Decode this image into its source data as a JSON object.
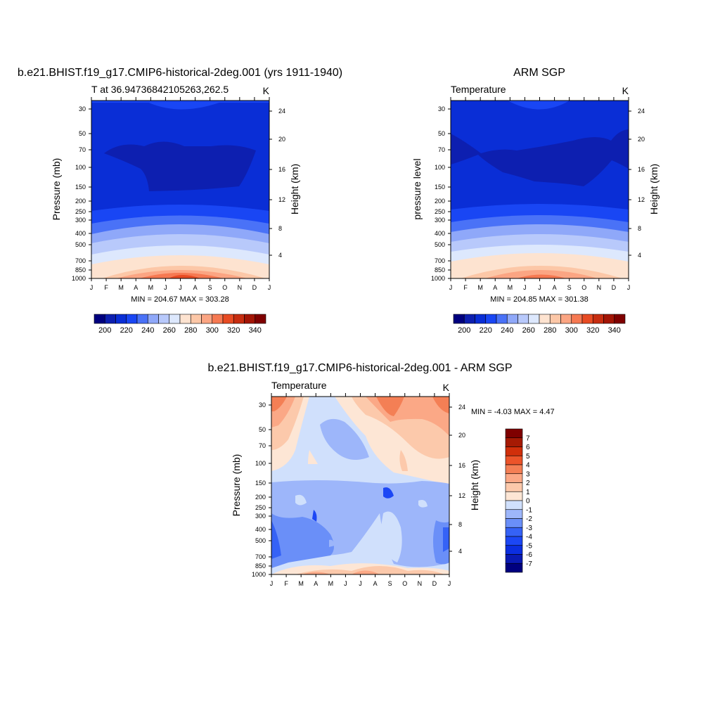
{
  "colors": {
    "abs_bands": [
      "#00007f",
      "#0d1fb0",
      "#0a2ed6",
      "#1946f4",
      "#4a72f7",
      "#8fa8f9",
      "#b8c9fb",
      "#dde8fd",
      "#fde3d0",
      "#fcc7a7",
      "#fba583",
      "#f67952",
      "#e84b23",
      "#c72d10",
      "#a31505",
      "#7f0000"
    ],
    "diff_bands": [
      "#00007f",
      "#0a1ab3",
      "#0b2ee0",
      "#1c47f5",
      "#3562f6",
      "#6a8ff8",
      "#9db6fa",
      "#d0e0fc",
      "#fde6d5",
      "#fcc9ab",
      "#fba886",
      "#f47f55",
      "#ec542a",
      "#d12f0b",
      "#a61a04",
      "#7f0000"
    ]
  },
  "chart_data": [
    {
      "type": "heatmap",
      "title": "b.e21.BHIST.f19_g17.CMIP6-historical-2deg.001 (yrs 1911-1940)",
      "subtitle_left": "T at 36.94736842105263,262.5",
      "subtitle_right": "K",
      "ylabel": "Pressure (mb)",
      "ylabel_right": "Height (km)",
      "x_ticks": [
        "J",
        "F",
        "M",
        "A",
        "M",
        "J",
        "J",
        "A",
        "S",
        "O",
        "N",
        "D",
        "J"
      ],
      "y_ticks": [
        30,
        50,
        70,
        100,
        150,
        200,
        250,
        300,
        400,
        500,
        700,
        850,
        1000
      ],
      "y_right_ticks": [
        24,
        20,
        16,
        12,
        8,
        4
      ],
      "y_scale": "log",
      "ylim": [
        1000,
        25
      ],
      "minmax": "MIN = 204.67 MAX = 303.28",
      "colorbar": {
        "orientation": "horizontal",
        "labels": [
          "200",
          "220",
          "240",
          "260",
          "280",
          "300",
          "320",
          "340"
        ]
      }
    },
    {
      "type": "heatmap",
      "title": "ARM SGP",
      "subtitle_left": "Temperature",
      "subtitle_right": "K",
      "ylabel": "pressure level",
      "ylabel_right": "Height (km)",
      "x_ticks": [
        "J",
        "F",
        "M",
        "A",
        "M",
        "J",
        "J",
        "A",
        "S",
        "O",
        "N",
        "D",
        "J"
      ],
      "y_ticks": [
        30,
        50,
        70,
        100,
        150,
        200,
        250,
        300,
        400,
        500,
        700,
        850,
        1000
      ],
      "y_right_ticks": [
        24,
        20,
        16,
        12,
        8,
        4
      ],
      "y_scale": "log",
      "ylim": [
        1000,
        25
      ],
      "minmax": "MIN = 204.85 MAX = 301.38",
      "colorbar": {
        "orientation": "horizontal",
        "labels": [
          "200",
          "220",
          "240",
          "260",
          "280",
          "300",
          "320",
          "340"
        ]
      }
    },
    {
      "type": "heatmap",
      "title": "b.e21.BHIST.f19_g17.CMIP6-historical-2deg.001 - ARM SGP",
      "subtitle_left": "Temperature",
      "subtitle_right": "K",
      "ylabel": "Pressure (mb)",
      "ylabel_right": "Height (km)",
      "x_ticks": [
        "J",
        "F",
        "M",
        "A",
        "M",
        "J",
        "J",
        "A",
        "S",
        "O",
        "N",
        "D",
        "J"
      ],
      "y_ticks": [
        30,
        50,
        70,
        100,
        150,
        200,
        250,
        300,
        400,
        500,
        700,
        850,
        1000
      ],
      "y_right_ticks": [
        24,
        20,
        16,
        12,
        8,
        4
      ],
      "y_scale": "log",
      "ylim": [
        1000,
        25
      ],
      "minmax": "MIN =  -4.03 MAX =   4.47",
      "colorbar": {
        "orientation": "vertical",
        "labels": [
          "7",
          "6",
          "5",
          "4",
          "3",
          "2",
          "1",
          "0",
          "-1",
          "-2",
          "-3",
          "-4",
          "-5",
          "-6",
          "-7"
        ]
      }
    }
  ]
}
